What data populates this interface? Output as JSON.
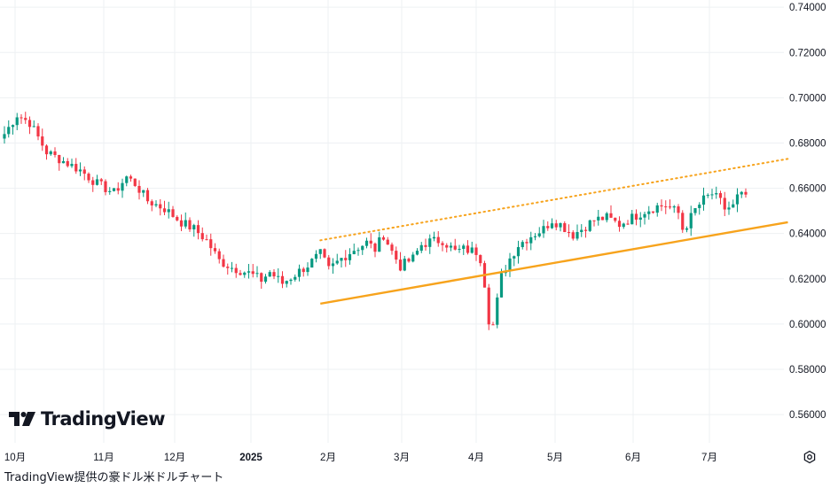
{
  "chart_data": {
    "type": "candlestick",
    "yaxis": {
      "ticks": [
        "0.74000",
        "0.72000",
        "0.70000",
        "0.68000",
        "0.66000",
        "0.64000",
        "0.62000",
        "0.60000",
        "0.58000",
        "0.56000"
      ],
      "ylim": [
        0.5475,
        0.7432
      ],
      "position": "right"
    },
    "xaxis": {
      "ticks": [
        {
          "label": "10月",
          "bold": false
        },
        {
          "label": "11月",
          "bold": false
        },
        {
          "label": "12月",
          "bold": false
        },
        {
          "label": "2025",
          "bold": true
        },
        {
          "label": "2月",
          "bold": false
        },
        {
          "label": "3月",
          "bold": false
        },
        {
          "label": "4月",
          "bold": false
        },
        {
          "label": "5月",
          "bold": false
        },
        {
          "label": "6月",
          "bold": false
        },
        {
          "label": "7月",
          "bold": false
        }
      ]
    },
    "grid": true,
    "colors": {
      "up": "#089981",
      "down": "#f23645",
      "trend": "#f7a31c",
      "grid": "#eef0f3"
    },
    "close_path": [
      [
        0,
        0.684
      ],
      [
        3,
        0.6925
      ],
      [
        6,
        0.689
      ],
      [
        10,
        0.676
      ],
      [
        14,
        0.672
      ],
      [
        18,
        0.668
      ],
      [
        22,
        0.662
      ],
      [
        26,
        0.658
      ],
      [
        29,
        0.665
      ],
      [
        31,
        0.662
      ],
      [
        34,
        0.6545
      ],
      [
        38,
        0.651
      ],
      [
        42,
        0.645
      ],
      [
        45,
        0.642
      ],
      [
        48,
        0.637
      ],
      [
        51,
        0.628
      ],
      [
        54,
        0.625
      ],
      [
        58,
        0.6225
      ],
      [
        61,
        0.6195
      ],
      [
        63,
        0.623
      ],
      [
        66,
        0.618
      ],
      [
        69,
        0.622
      ],
      [
        72,
        0.626
      ],
      [
        75,
        0.631
      ],
      [
        77,
        0.624
      ],
      [
        80,
        0.629
      ],
      [
        83,
        0.633
      ],
      [
        86,
        0.636
      ],
      [
        88,
        0.633
      ],
      [
        90,
        0.6395
      ],
      [
        92,
        0.632
      ],
      [
        94,
        0.6255
      ],
      [
        97,
        0.629
      ],
      [
        99,
        0.635
      ],
      [
        101,
        0.6365
      ],
      [
        104,
        0.637
      ],
      [
        107,
        0.632
      ],
      [
        109,
        0.633
      ],
      [
        112,
        0.632
      ],
      [
        113,
        0.629
      ],
      [
        114,
        0.618
      ],
      [
        115,
        0.602
      ],
      [
        116,
        0.5995
      ],
      [
        118,
        0.621
      ],
      [
        120,
        0.629
      ],
      [
        122,
        0.635
      ],
      [
        125,
        0.639
      ],
      [
        128,
        0.642
      ],
      [
        130,
        0.646
      ],
      [
        132,
        0.644
      ],
      [
        135,
        0.6395
      ],
      [
        137,
        0.642
      ],
      [
        140,
        0.646
      ],
      [
        143,
        0.647
      ],
      [
        146,
        0.644
      ],
      [
        149,
        0.647
      ],
      [
        152,
        0.65
      ],
      [
        155,
        0.652
      ],
      [
        157,
        0.6525
      ],
      [
        160,
        0.649
      ],
      [
        161,
        0.642
      ],
      [
        162,
        0.644
      ],
      [
        164,
        0.6505
      ],
      [
        166,
        0.655
      ],
      [
        168,
        0.6575
      ],
      [
        170,
        0.654
      ],
      [
        171,
        0.651
      ],
      [
        173,
        0.652
      ],
      [
        174,
        0.656
      ],
      [
        176,
        0.657
      ]
    ],
    "trendlines": [
      {
        "style": "solid",
        "from": [
          75,
          0.609
        ],
        "to": [
          186,
          0.645
        ]
      },
      {
        "style": "dotted",
        "from": [
          75,
          0.637
        ],
        "to": [
          186,
          0.673
        ]
      }
    ]
  },
  "branding": {
    "logo_text": "TradingView"
  },
  "caption": "TradingView提供の豪ドル米ドルチャート",
  "icons": {
    "settings": "settings-icon"
  }
}
